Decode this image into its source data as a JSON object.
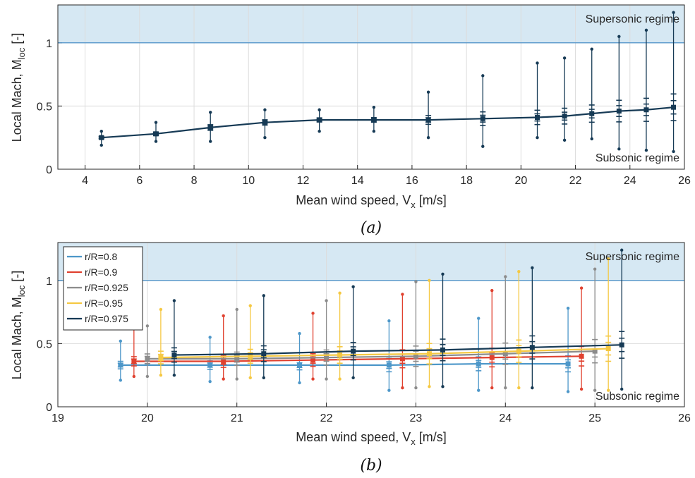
{
  "chart_data": [
    {
      "type": "line",
      "panel": "a",
      "caption": "(a)",
      "xlabel": "Mean wind speed, V",
      "xlabel_sub": "x",
      "xlabel_unit": " [m/s]",
      "ylabel": "Local Mach, M",
      "ylabel_sub": "loc",
      "ylabel_unit": " [-]",
      "xlim": [
        3,
        26
      ],
      "ylim": [
        0,
        1.3
      ],
      "xticks": [
        "4",
        "6",
        "8",
        "10",
        "12",
        "14",
        "16",
        "18",
        "20",
        "22",
        "24",
        "26"
      ],
      "yticks": [
        "0",
        "0.5",
        "1"
      ],
      "grid": true,
      "regions": [
        {
          "label": "Supersonic regime",
          "from": 1.0,
          "to": 1.3,
          "color": "#d6e8f3"
        }
      ],
      "annotations": [
        "Supersonic regime",
        "Subsonic regime"
      ],
      "series": [
        {
          "color": "#163a55",
          "x": [
            4.6,
            6.6,
            8.6,
            10.6,
            12.6,
            14.6,
            16.6,
            18.6,
            20.6,
            21.6,
            22.6,
            23.6,
            24.6,
            25.6
          ],
          "values": [
            0.25,
            0.28,
            0.33,
            0.37,
            0.39,
            0.39,
            0.39,
            0.4,
            0.41,
            0.42,
            0.44,
            0.46,
            0.47,
            0.49
          ],
          "min": [
            0.19,
            0.22,
            0.22,
            0.25,
            0.3,
            0.3,
            0.25,
            0.18,
            0.25,
            0.23,
            0.24,
            0.16,
            0.15,
            0.14
          ],
          "max": [
            0.3,
            0.37,
            0.45,
            0.47,
            0.47,
            0.49,
            0.61,
            0.74,
            0.84,
            0.88,
            0.95,
            1.05,
            1.1,
            1.24
          ]
        }
      ]
    },
    {
      "type": "line",
      "panel": "b",
      "caption": "(b)",
      "xlabel": "Mean wind speed, V",
      "xlabel_sub": "x",
      "xlabel_unit": " [m/s]",
      "ylabel": "Local Mach, M",
      "ylabel_sub": "loc",
      "ylabel_unit": " [-]",
      "xlim": [
        19,
        26
      ],
      "ylim": [
        0,
        1.3
      ],
      "xticks": [
        "19",
        "20",
        "21",
        "22",
        "23",
        "24",
        "25",
        "26"
      ],
      "yticks": [
        "0",
        "0.5",
        "1"
      ],
      "grid": true,
      "legend": "top-left",
      "regions": [
        {
          "label": "Supersonic regime",
          "from": 1.0,
          "to": 1.3,
          "color": "#d6e8f3"
        }
      ],
      "annotations": [
        "Supersonic regime",
        "Subsonic regime"
      ],
      "x_base": [
        19.7,
        20.7,
        21.7,
        22.7,
        23.7,
        24.7
      ],
      "series": [
        {
          "name": "r/R=0.8",
          "color": "#4d97c9",
          "offset": 0.0,
          "values": [
            0.33,
            0.33,
            0.33,
            0.33,
            0.34,
            0.34
          ],
          "min": [
            0.21,
            0.2,
            0.19,
            0.13,
            0.13,
            0.12
          ],
          "max": [
            0.52,
            0.55,
            0.58,
            0.68,
            0.7,
            0.78
          ]
        },
        {
          "name": "r/R=0.9",
          "color": "#e0412f",
          "offset": 0.15,
          "values": [
            0.36,
            0.36,
            0.37,
            0.38,
            0.39,
            0.4
          ],
          "min": [
            0.24,
            0.22,
            0.22,
            0.15,
            0.15,
            0.14
          ],
          "max": [
            0.62,
            0.72,
            0.74,
            0.89,
            0.92,
            0.94
          ]
        },
        {
          "name": "r/R=0.925",
          "color": "#8c8c8c",
          "offset": 0.3,
          "values": [
            0.38,
            0.38,
            0.39,
            0.4,
            0.42,
            0.44
          ],
          "min": [
            0.24,
            0.22,
            0.22,
            0.15,
            0.15,
            0.13
          ],
          "max": [
            0.64,
            0.77,
            0.84,
            0.99,
            1.03,
            1.09
          ]
        },
        {
          "name": "r/R=0.95",
          "color": "#f5c842",
          "offset": 0.45,
          "values": [
            0.39,
            0.4,
            0.41,
            0.42,
            0.44,
            0.46
          ],
          "min": [
            0.25,
            0.23,
            0.22,
            0.16,
            0.15,
            0.13
          ],
          "max": [
            0.77,
            0.8,
            0.9,
            1.0,
            1.07,
            1.17
          ]
        },
        {
          "name": "r/R=0.975",
          "color": "#163a55",
          "offset": 0.6,
          "values": [
            0.41,
            0.42,
            0.44,
            0.45,
            0.47,
            0.49
          ],
          "min": [
            0.25,
            0.23,
            0.23,
            0.16,
            0.15,
            0.14
          ],
          "max": [
            0.84,
            0.88,
            0.95,
            1.05,
            1.1,
            1.24
          ]
        }
      ]
    }
  ]
}
